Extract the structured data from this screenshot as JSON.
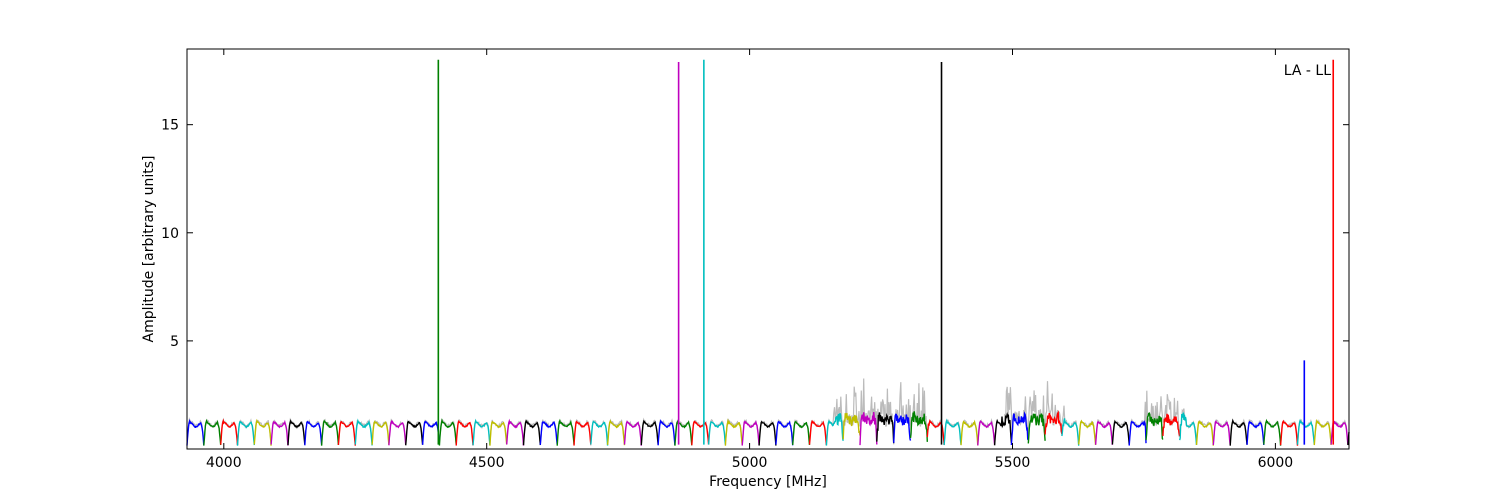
{
  "chart_data": {
    "type": "line",
    "title": "",
    "annotation": "LA - LL",
    "xlabel": "Frequency [MHz]",
    "ylabel": "Amplitude [arbitrary units]",
    "xlim": [
      3930,
      6140
    ],
    "ylim": [
      0,
      18.5
    ],
    "xticks": [
      4000,
      4500,
      5000,
      5500,
      6000
    ],
    "yticks": [
      5,
      10,
      15
    ],
    "grid": false,
    "legend": "none",
    "band_pattern": {
      "start": 3930,
      "width": 32,
      "color_cycle": [
        "#0000ff",
        "#008000",
        "#ff0000",
        "#00bfbf",
        "#bfbf00",
        "#bf00bf",
        "#000000"
      ],
      "band_level": 1.1,
      "edge_dip": 0.15
    },
    "background_series": {
      "name": "",
      "color": "#bbbbbb",
      "noisy_ranges": [
        [
          5160,
          5340
        ],
        [
          5480,
          5600
        ],
        [
          5750,
          5830
        ]
      ]
    },
    "spikes": [
      {
        "x": 4408,
        "y": 18.0,
        "color": "#008000"
      },
      {
        "x": 4865,
        "y": 17.9,
        "color": "#bf00bf"
      },
      {
        "x": 4913,
        "y": 18.0,
        "color": "#00bfbf"
      },
      {
        "x": 5365,
        "y": 17.9,
        "color": "#000000"
      },
      {
        "x": 6055,
        "y": 4.1,
        "color": "#0000ff"
      },
      {
        "x": 6110,
        "y": 18.0,
        "color": "#ff0000"
      }
    ]
  }
}
